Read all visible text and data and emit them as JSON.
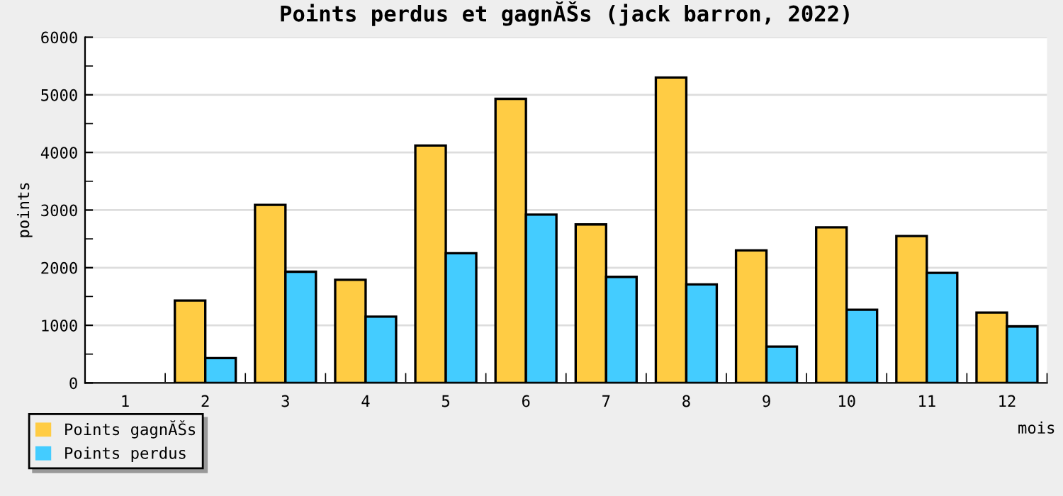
{
  "chart_data": {
    "type": "bar",
    "title": "Points perdus et gagnĂŠs (jack barron, 2022)",
    "xlabel": "mois",
    "ylabel": "points",
    "categories": [
      "1",
      "2",
      "3",
      "4",
      "5",
      "6",
      "7",
      "8",
      "9",
      "10",
      "11",
      "12"
    ],
    "series": [
      {
        "name": "Points gagnĂŠs",
        "color": "#ffcc44",
        "values": [
          0,
          1430,
          3090,
          1790,
          4120,
          4930,
          2750,
          5300,
          2300,
          2700,
          2550,
          1220
        ]
      },
      {
        "name": "Points perdus",
        "color": "#44ccff",
        "values": [
          0,
          430,
          1930,
          1150,
          2250,
          2920,
          1840,
          1710,
          630,
          1270,
          1910,
          980
        ]
      }
    ],
    "ylim": [
      0,
      6000
    ],
    "yticks": [
      0,
      1000,
      2000,
      3000,
      4000,
      5000,
      6000
    ],
    "grid": "y",
    "legend": "bottom left"
  }
}
